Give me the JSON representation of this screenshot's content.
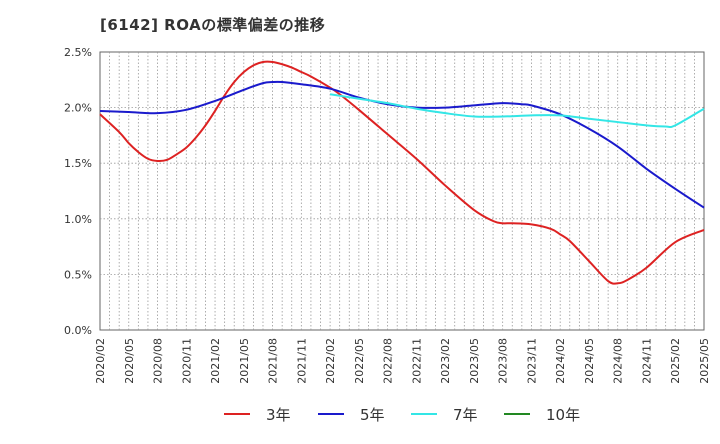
{
  "chart_data": {
    "type": "line",
    "title": "[6142]  ROAの標準偏差の推移",
    "xlabel": "",
    "ylabel": "",
    "ylim": [
      0,
      0.025
    ],
    "y_ticks": [
      0,
      0.005,
      0.01,
      0.015,
      0.02,
      0.025
    ],
    "y_tick_labels": [
      "0.0%",
      "0.5%",
      "1.0%",
      "1.5%",
      "2.0%",
      "2.5%"
    ],
    "x_tick_labels": [
      "2020/02",
      "2020/05",
      "2020/08",
      "2020/11",
      "2021/02",
      "2021/05",
      "2021/08",
      "2021/11",
      "2022/02",
      "2022/05",
      "2022/08",
      "2022/11",
      "2023/02",
      "2023/05",
      "2023/08",
      "2023/11",
      "2024/02",
      "2024/05",
      "2024/08",
      "2024/11",
      "2025/02",
      "2025/05"
    ],
    "grid": true,
    "legend_position": "bottom",
    "series": [
      {
        "name": "3年",
        "color": "#dd2222",
        "points": [
          [
            "2020/02",
            0.0194
          ],
          [
            "2020/04",
            0.0178
          ],
          [
            "2020/05",
            0.0168
          ],
          [
            "2020/06",
            0.016
          ],
          [
            "2020/07",
            0.0154
          ],
          [
            "2020/08",
            0.0152
          ],
          [
            "2020/09",
            0.0153
          ],
          [
            "2020/10",
            0.0158
          ],
          [
            "2020/11",
            0.0164
          ],
          [
            "2020/12",
            0.0173
          ],
          [
            "2021/01",
            0.0184
          ],
          [
            "2021/02",
            0.0197
          ],
          [
            "2021/03",
            0.0211
          ],
          [
            "2021/04",
            0.0223
          ],
          [
            "2021/05",
            0.0232
          ],
          [
            "2021/06",
            0.0238
          ],
          [
            "2021/07",
            0.0241
          ],
          [
            "2021/08",
            0.0241
          ],
          [
            "2021/09",
            0.0239
          ],
          [
            "2021/10",
            0.0236
          ],
          [
            "2021/11",
            0.0232
          ],
          [
            "2021/12",
            0.0228
          ],
          [
            "2022/02",
            0.0218
          ],
          [
            "2022/03",
            0.0212
          ],
          [
            "2022/05",
            0.0198
          ],
          [
            "2022/08",
            0.0176
          ],
          [
            "2022/11",
            0.0154
          ],
          [
            "2023/02",
            0.013
          ],
          [
            "2023/05",
            0.0108
          ],
          [
            "2023/07",
            0.0098
          ],
          [
            "2023/08",
            0.0096
          ],
          [
            "2023/09",
            0.0096
          ],
          [
            "2023/11",
            0.0095
          ],
          [
            "2024/01",
            0.0091
          ],
          [
            "2024/02",
            0.0086
          ],
          [
            "2024/03",
            0.008
          ],
          [
            "2024/05",
            0.0062
          ],
          [
            "2024/07",
            0.0044
          ],
          [
            "2024/08",
            0.0042
          ],
          [
            "2024/09",
            0.0045
          ],
          [
            "2024/11",
            0.0056
          ],
          [
            "2025/02",
            0.0079
          ],
          [
            "2025/05",
            0.009
          ]
        ]
      },
      {
        "name": "5年",
        "color": "#1a1acc",
        "points": [
          [
            "2020/02",
            0.0197
          ],
          [
            "2020/05",
            0.0196
          ],
          [
            "2020/08",
            0.0195
          ],
          [
            "2020/11",
            0.0198
          ],
          [
            "2021/02",
            0.0206
          ],
          [
            "2021/05",
            0.0216
          ],
          [
            "2021/07",
            0.0222
          ],
          [
            "2021/08",
            0.0223
          ],
          [
            "2021/09",
            0.0223
          ],
          [
            "2021/11",
            0.0221
          ],
          [
            "2022/02",
            0.0217
          ],
          [
            "2022/05",
            0.0209
          ],
          [
            "2022/08",
            0.0203
          ],
          [
            "2022/11",
            0.02
          ],
          [
            "2023/02",
            0.02
          ],
          [
            "2023/05",
            0.0202
          ],
          [
            "2023/08",
            0.0204
          ],
          [
            "2023/10",
            0.0203
          ],
          [
            "2023/11",
            0.0202
          ],
          [
            "2024/02",
            0.0194
          ],
          [
            "2024/05",
            0.0181
          ],
          [
            "2024/08",
            0.0165
          ],
          [
            "2024/11",
            0.0145
          ],
          [
            "2025/02",
            0.0127
          ],
          [
            "2025/05",
            0.011
          ]
        ]
      },
      {
        "name": "7年",
        "color": "#33e6e6",
        "points": [
          [
            "2022/02",
            0.0212
          ],
          [
            "2022/05",
            0.0208
          ],
          [
            "2022/08",
            0.0204
          ],
          [
            "2022/11",
            0.0199
          ],
          [
            "2023/02",
            0.0195
          ],
          [
            "2023/05",
            0.0192
          ],
          [
            "2023/08",
            0.0192
          ],
          [
            "2023/11",
            0.0193
          ],
          [
            "2024/02",
            0.0193
          ],
          [
            "2024/05",
            0.019
          ],
          [
            "2024/08",
            0.0187
          ],
          [
            "2024/11",
            0.0184
          ],
          [
            "2025/01",
            0.0183
          ],
          [
            "2025/02",
            0.0184
          ],
          [
            "2025/05",
            0.0199
          ]
        ]
      },
      {
        "name": "10年",
        "color": "#228822",
        "points": []
      }
    ]
  }
}
